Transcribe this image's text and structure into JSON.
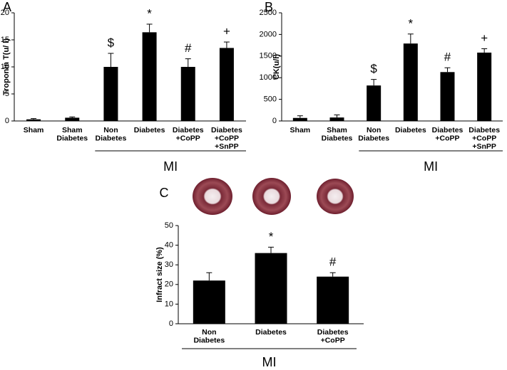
{
  "chart_data": [
    {
      "type": "bar",
      "panel": "A",
      "y_label": "Troponin T(u/ l)",
      "color": "#000000",
      "categories": [
        [
          "Sham"
        ],
        [
          "Sham",
          "Diabetes"
        ],
        [
          "Non",
          "Diabetes"
        ],
        [
          "Diabetes"
        ],
        [
          "Diabetes",
          "+CoPP"
        ],
        [
          "Diabetes",
          "+CoPP",
          "+SnPP"
        ]
      ],
      "values": [
        0.3,
        0.6,
        10,
        16.4,
        10,
        13.5
      ],
      "errors": [
        0.15,
        0.15,
        2.5,
        1.5,
        1.5,
        1.1
      ],
      "annotations": [
        null,
        null,
        "$",
        "*",
        "#",
        "+"
      ],
      "group_label": "MI",
      "ylim": [
        0,
        20
      ],
      "yticks": [
        0,
        5,
        10,
        15,
        20
      ]
    },
    {
      "type": "bar",
      "panel": "B",
      "y_label": "CK(u/l)",
      "color": "#000000",
      "categories": [
        [
          "Sham"
        ],
        [
          "Sham",
          "Diabetes"
        ],
        [
          "Non",
          "Diabetes"
        ],
        [
          "Diabetes"
        ],
        [
          "Diabetes",
          "+CoPP"
        ],
        [
          "Diabetes",
          "+CoPP",
          "+SnPP"
        ]
      ],
      "values": [
        70,
        80,
        820,
        1790,
        1130,
        1580
      ],
      "errors": [
        50,
        60,
        140,
        220,
        100,
        90
      ],
      "annotations": [
        null,
        null,
        "$",
        "*",
        "#",
        "+"
      ],
      "group_label": "MI",
      "ylim": [
        0,
        2500
      ],
      "yticks": [
        0,
        500,
        1000,
        1500,
        2000,
        2500
      ]
    },
    {
      "type": "bar",
      "panel": "C",
      "y_label": "Infract size (%)",
      "color": "#000000",
      "categories": [
        [
          "Non",
          "Diabetes"
        ],
        [
          "Diabetes"
        ],
        [
          "Diabetes",
          "+CoPP"
        ]
      ],
      "values": [
        22,
        36,
        24
      ],
      "errors": [
        4,
        3,
        2
      ],
      "annotations": [
        null,
        "*",
        "#"
      ],
      "group_label": "MI",
      "ylim": [
        0,
        50
      ],
      "yticks": [
        0,
        10,
        20,
        30,
        40,
        50
      ]
    }
  ]
}
